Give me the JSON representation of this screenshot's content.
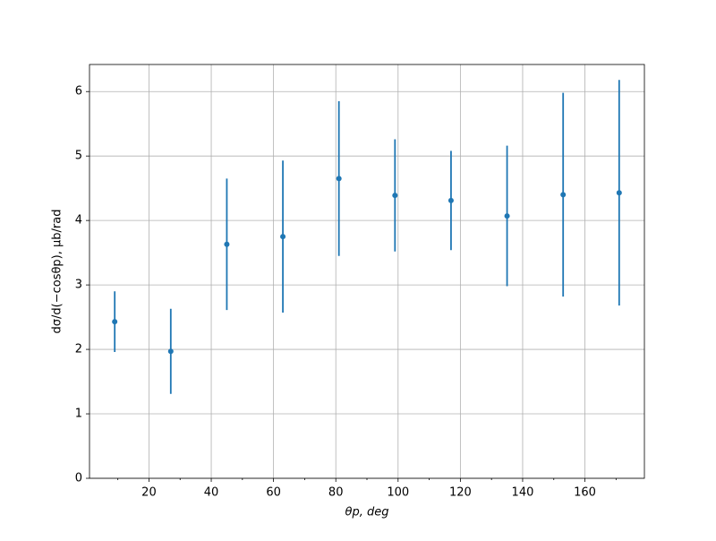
{
  "chart_data": {
    "type": "errorbar",
    "xlabel": "θp, deg",
    "ylabel": "dσ/d(−cosθp), μb/rad",
    "x": [
      9,
      27,
      45,
      63,
      81,
      99,
      117,
      135,
      153,
      171
    ],
    "values": [
      2.43,
      1.97,
      3.63,
      3.75,
      4.65,
      4.39,
      4.31,
      4.07,
      4.4,
      4.43
    ],
    "errors": [
      0.47,
      0.66,
      1.02,
      1.18,
      1.2,
      0.87,
      0.77,
      1.09,
      1.58,
      1.75
    ],
    "color": "#1f77b4",
    "xlim": [
      0.9,
      179.1
    ],
    "ylim": [
      0,
      6.42
    ],
    "xticks": [
      20,
      40,
      60,
      80,
      100,
      120,
      140,
      160
    ],
    "xminorticks": [
      10,
      30,
      50,
      70,
      90,
      110,
      130,
      150,
      170
    ],
    "yticks": [
      0,
      1,
      2,
      3,
      4,
      5,
      6
    ],
    "grid": true
  }
}
